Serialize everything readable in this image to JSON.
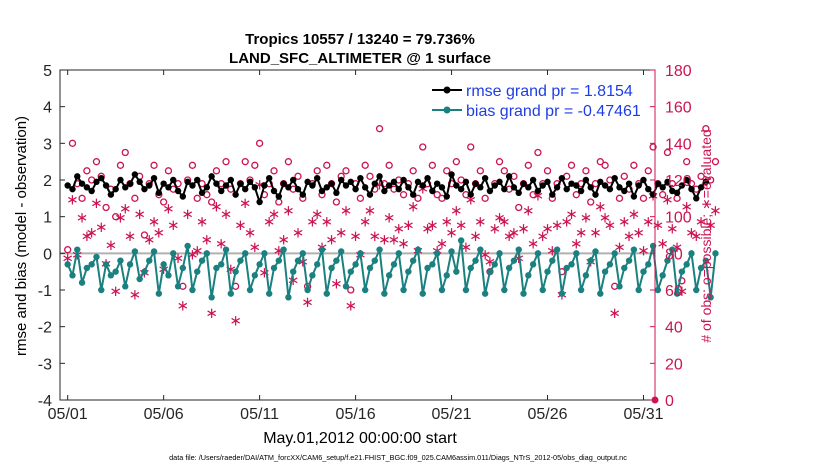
{
  "chart_data": {
    "type": "line",
    "title": [
      "Tropics 10557 / 13240 = 79.736%",
      "LAND_SFC_ALTIMETER @ 1 surface"
    ],
    "xlabel": "May.01,2012 00:00:00 start",
    "ylabel_left": "rmse and bias (model - observation)",
    "ylabel_right": "# of obs: o=possible; ∗=evaluated",
    "footer": "data file: /Users/raeder/DAI/ATM_forcXX/CAM6_setup/f.e21.FHIST_BGC.f09_025.CAM6assim.011/Diags_NTrS_2012-05/obs_diag_output.nc",
    "xlim": [
      0.6,
      31.6
    ],
    "ylim_left": [
      -4,
      5
    ],
    "ylim_right": [
      0,
      180
    ],
    "x_tick_values": [
      1,
      6,
      11,
      16,
      21,
      26,
      31
    ],
    "x_tick_labels": [
      "05/01",
      "05/06",
      "05/11",
      "05/16",
      "05/21",
      "05/26",
      "05/31"
    ],
    "y_left_ticks": [
      "-4",
      "-3",
      "-2",
      "-1",
      "0",
      "1",
      "2",
      "3",
      "4",
      "5"
    ],
    "y_right_ticks": [
      "0",
      "20",
      "40",
      "60",
      "80",
      "100",
      "120",
      "140",
      "160",
      "180"
    ],
    "colors": {
      "rmse": "#000000",
      "bias": "#1a8080",
      "obs": "#cc1452",
      "legend_text": "#1f3de6",
      "zero_line": "#b0b0b0"
    },
    "legend": [
      {
        "name": "rmse grand pr = 1.8154",
        "color": "#000000"
      },
      {
        "name": "bias grand pr = -0.47461",
        "color": "#1a8080"
      }
    ],
    "steps_per_day": 4,
    "rmse": [
      1.85,
      1.75,
      2.1,
      1.9,
      1.8,
      1.7,
      1.95,
      2.05,
      1.85,
      1.6,
      1.75,
      2.0,
      1.8,
      1.9,
      2.15,
      1.95,
      1.75,
      1.85,
      2.05,
      1.65,
      1.9,
      1.8,
      2.0,
      1.7,
      1.55,
      1.95,
      1.85,
      2.0,
      1.65,
      1.8,
      2.1,
      1.9,
      1.7,
      1.85,
      2.0,
      1.6,
      1.9,
      1.75,
      1.95,
      1.8,
      1.4,
      1.85,
      2.05,
      1.7,
      1.55,
      1.9,
      1.8,
      2.0,
      1.75,
      1.6,
      1.95,
      1.85,
      2.05,
      1.7,
      1.8,
      1.9,
      1.65,
      2.0,
      1.85,
      1.95,
      1.75,
      2.05,
      1.8,
      1.6,
      1.9,
      2.1,
      1.7,
      1.85,
      1.95,
      1.75,
      2.0,
      1.8,
      1.6,
      1.95,
      1.85,
      2.05,
      1.7,
      1.9,
      1.8,
      1.55,
      2.15,
      1.85,
      1.75,
      1.95,
      1.6,
      1.9,
      1.8,
      2.05,
      1.7,
      1.85,
      1.95,
      1.75,
      2.1,
      1.8,
      1.65,
      1.9,
      1.8,
      2.0,
      1.7,
      1.85,
      1.95,
      1.6,
      1.8,
      2.05,
      1.75,
      1.9,
      1.85,
      1.7,
      2.0,
      1.8,
      1.6,
      1.95,
      1.85,
      1.75,
      2.05,
      1.8,
      1.7,
      1.9,
      1.55,
      1.85,
      2.0,
      1.75,
      1.6,
      1.9,
      1.8,
      1.95,
      1.7,
      1.65,
      1.85,
      2.0,
      1.75,
      1.5,
      1.8,
      1.95
    ],
    "bias": [
      -0.3,
      -0.6,
      0.1,
      -0.8,
      -0.4,
      -0.3,
      -0.1,
      -1.0,
      -0.3,
      -0.6,
      -0.5,
      -0.2,
      -0.9,
      -0.3,
      0.05,
      -0.7,
      -0.5,
      -0.2,
      0.05,
      -1.1,
      -0.3,
      -0.6,
      0.0,
      -0.9,
      -0.4,
      0.2,
      -1.0,
      -0.5,
      -0.2,
      0.0,
      -1.2,
      -0.4,
      -0.3,
      0.1,
      -1.1,
      -0.5,
      -0.2,
      0.0,
      -1.0,
      -0.6,
      -0.3,
      0.0,
      -1.1,
      -0.4,
      -0.2,
      0.1,
      -1.2,
      -0.5,
      -0.2,
      0.0,
      -1.0,
      -0.6,
      -0.3,
      0.1,
      -1.1,
      -0.4,
      -0.2,
      0.05,
      -0.9,
      -0.5,
      -0.3,
      0.0,
      -1.0,
      -0.4,
      -0.2,
      0.1,
      -1.1,
      -0.6,
      -0.3,
      0.0,
      -1.0,
      -0.5,
      -0.2,
      0.1,
      -1.1,
      -0.4,
      -0.3,
      0.0,
      -1.0,
      -0.6,
      0.05,
      -0.5,
      0.35,
      -1.0,
      -0.4,
      -0.2,
      0.1,
      -1.1,
      -0.5,
      -0.3,
      0.0,
      -1.0,
      -0.4,
      -0.2,
      0.1,
      -1.1,
      -0.6,
      -0.3,
      0.0,
      -1.0,
      -0.5,
      -0.2,
      0.1,
      -1.1,
      -0.4,
      -0.3,
      0.0,
      -1.0,
      -0.6,
      -0.2,
      0.05,
      -1.1,
      -0.5,
      -0.3,
      0.0,
      -0.9,
      -0.4,
      -0.2,
      0.1,
      -1.0,
      -0.5,
      -0.3,
      0.2,
      -1.0,
      -0.6,
      -0.2,
      0.1,
      -1.1,
      -0.5,
      -0.3,
      0.0,
      -1.0,
      -0.4,
      -0.2,
      -1.2,
      0.0
    ],
    "obs_possible": [
      82,
      140,
      118,
      110,
      125,
      120,
      130,
      122,
      105,
      115,
      100,
      128,
      135,
      118,
      110,
      122,
      90,
      118,
      128,
      112,
      108,
      125,
      115,
      118,
      62,
      120,
      128,
      110,
      118,
      112,
      108,
      125,
      118,
      130,
      115,
      62,
      118,
      130,
      120,
      128,
      140,
      112,
      118,
      125,
      108,
      118,
      130,
      115,
      122,
      110,
      62,
      118,
      125,
      112,
      128,
      118,
      108,
      122,
      125,
      60,
      118,
      110,
      128,
      122,
      115,
      148,
      118,
      128,
      115,
      120,
      112,
      118,
      125,
      110,
      138,
      118,
      128,
      112,
      110,
      125,
      118,
      130,
      120,
      112,
      138,
      118,
      125,
      110,
      70,
      118,
      130,
      125,
      115,
      122,
      105,
      118,
      128,
      112,
      135,
      118,
      125,
      110,
      118,
      70,
      122,
      128,
      112,
      118,
      125,
      108,
      118,
      130,
      128,
      120,
      62,
      110,
      122,
      115,
      128,
      118,
      110,
      125,
      138,
      118,
      112,
      135,
      118,
      110,
      65,
      130,
      118,
      115,
      122,
      148,
      120,
      130
    ],
    "obs_evaluated": [
      78,
      110,
      80,
      100,
      90,
      92,
      108,
      95,
      75,
      85,
      60,
      100,
      105,
      90,
      58,
      102,
      70,
      88,
      98,
      92,
      72,
      105,
      96,
      78,
      52,
      102,
      80,
      82,
      98,
      88,
      48,
      106,
      86,
      102,
      72,
      44,
      96,
      108,
      92,
      84,
      118,
      70,
      98,
      102,
      82,
      88,
      104,
      66,
      92,
      76,
      54,
      98,
      102,
      84,
      98,
      88,
      64,
      92,
      104,
      52,
      90,
      80,
      98,
      104,
      90,
      118,
      88,
      100,
      88,
      94,
      86,
      96,
      106,
      82,
      116,
      94,
      96,
      82,
      86,
      98,
      92,
      104,
      96,
      84,
      110,
      90,
      98,
      80,
      76,
      94,
      100,
      98,
      90,
      92,
      78,
      94,
      104,
      86,
      112,
      90,
      94,
      82,
      96,
      58,
      98,
      102,
      86,
      92,
      100,
      76,
      92,
      106,
      100,
      96,
      48,
      84,
      98,
      90,
      102,
      92,
      82,
      98,
      112,
      96,
      86,
      110,
      94,
      84,
      60,
      106,
      92,
      90,
      98,
      120,
      96,
      104
    ]
  }
}
